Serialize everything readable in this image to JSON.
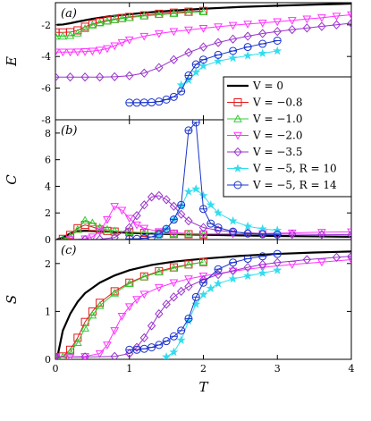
{
  "chart_data": {
    "type": "line",
    "x_axis": {
      "label": "T",
      "lim": [
        0,
        4
      ],
      "ticks": [
        "0",
        "1",
        "2",
        "3",
        "4"
      ]
    },
    "legend": {
      "placement": "right, spanning panels (a) and (b)",
      "entries": [
        {
          "label": "V = 0",
          "color": "#000000",
          "marker": "none"
        },
        {
          "label": "V = −0.8",
          "color": "#e41a1c",
          "marker": "square"
        },
        {
          "label": "V = −1.0",
          "color": "#33cc33",
          "marker": "triangle-up"
        },
        {
          "label": "V = −2.0",
          "color": "#ff33ff",
          "marker": "triangle-down"
        },
        {
          "label": "V = −3.5",
          "color": "#9933cc",
          "marker": "diamond"
        },
        {
          "label": "V = −5, R = 10",
          "color": "#33ddee",
          "marker": "star"
        },
        {
          "label": "V = −5, R = 14",
          "color": "#1a33cc",
          "marker": "circle-plus"
        }
      ]
    },
    "panels": [
      {
        "tag": "(a)",
        "ylabel": "E",
        "ylim": [
          -8,
          -0.6
        ],
        "yticks": [
          -8,
          -6,
          -4,
          -2
        ],
        "ytick_labels": [
          "-8",
          "-6",
          "-4",
          "-2"
        ],
        "series": [
          {
            "name": "V = 0",
            "x": [
              0.02,
              0.1,
              0.2,
              0.3,
              0.5,
              0.7,
              1.0,
              1.3,
              1.6,
              2.0,
              2.5,
              3.0,
              3.5,
              4.0
            ],
            "y": [
              -2.0,
              -1.98,
              -1.9,
              -1.8,
              -1.62,
              -1.48,
              -1.33,
              -1.2,
              -1.1,
              -0.98,
              -0.87,
              -0.79,
              -0.72,
              -0.66
            ]
          },
          {
            "name": "V = −0.8",
            "x": [
              0.0,
              0.1,
              0.2,
              0.3,
              0.4,
              0.5,
              0.6,
              0.7,
              0.8,
              0.9,
              1.0,
              1.2,
              1.4,
              1.6,
              1.8,
              2.0
            ],
            "y": [
              -2.48,
              -2.48,
              -2.46,
              -2.35,
              -2.12,
              -1.95,
              -1.82,
              -1.72,
              -1.64,
              -1.57,
              -1.5,
              -1.4,
              -1.3,
              -1.23,
              -1.17,
              -1.12
            ]
          },
          {
            "name": "V = −1.0",
            "x": [
              0.0,
              0.1,
              0.2,
              0.3,
              0.4,
              0.5,
              0.6,
              0.7,
              0.8,
              0.9,
              1.0,
              1.2,
              1.4,
              1.6,
              1.8,
              2.0
            ],
            "y": [
              -2.72,
              -2.72,
              -2.68,
              -2.52,
              -2.25,
              -2.02,
              -1.88,
              -1.77,
              -1.68,
              -1.6,
              -1.54,
              -1.44,
              -1.36,
              -1.29,
              -1.23,
              -1.18
            ]
          },
          {
            "name": "V = −2.0",
            "x": [
              0.0,
              0.1,
              0.2,
              0.3,
              0.4,
              0.5,
              0.6,
              0.7,
              0.8,
              0.9,
              1.0,
              1.2,
              1.4,
              1.6,
              1.8,
              2.0,
              2.2,
              2.4,
              2.6,
              2.8,
              3.0,
              3.2,
              3.4,
              3.6,
              3.8,
              4.0
            ],
            "y": [
              -3.72,
              -3.72,
              -3.72,
              -3.71,
              -3.69,
              -3.66,
              -3.6,
              -3.5,
              -3.32,
              -3.12,
              -2.95,
              -2.72,
              -2.55,
              -2.42,
              -2.32,
              -2.22,
              -2.12,
              -2.03,
              -1.95,
              -1.88,
              -1.8,
              -1.72,
              -1.63,
              -1.55,
              -1.45,
              -1.36
            ]
          },
          {
            "name": "V = −3.5",
            "x": [
              0.0,
              0.2,
              0.4,
              0.6,
              0.8,
              1.0,
              1.2,
              1.4,
              1.6,
              1.8,
              2.0,
              2.2,
              2.4,
              2.6,
              2.8,
              3.0,
              3.2,
              3.4,
              3.6,
              3.8,
              4.0
            ],
            "y": [
              -5.3,
              -5.3,
              -5.3,
              -5.3,
              -5.28,
              -5.22,
              -5.05,
              -4.7,
              -4.2,
              -3.75,
              -3.4,
              -3.12,
              -2.9,
              -2.72,
              -2.55,
              -2.42,
              -2.3,
              -2.2,
              -2.1,
              -2.0,
              -1.9
            ]
          },
          {
            "name": "V = −5, R = 10",
            "x": [
              1.7,
              1.8,
              1.9,
              2.0,
              2.2,
              2.4,
              2.6,
              2.8,
              3.0
            ],
            "y": [
              -5.8,
              -5.5,
              -5.0,
              -4.6,
              -4.3,
              -4.1,
              -3.95,
              -3.8,
              -3.65
            ]
          },
          {
            "name": "V = −5, R = 14",
            "x": [
              1.0,
              1.1,
              1.2,
              1.3,
              1.4,
              1.5,
              1.6,
              1.7,
              1.8,
              1.9,
              2.0,
              2.2,
              2.4,
              2.6,
              2.8,
              3.0
            ],
            "y": [
              -6.92,
              -6.92,
              -6.91,
              -6.9,
              -6.85,
              -6.72,
              -6.55,
              -6.2,
              -5.2,
              -4.5,
              -4.2,
              -3.9,
              -3.65,
              -3.4,
              -3.2,
              -3.0
            ]
          }
        ]
      },
      {
        "tag": "(b)",
        "ylabel": "C",
        "ylim": [
          0,
          9
        ],
        "yticks": [
          0,
          2,
          4,
          6,
          8
        ],
        "ytick_labels": [
          "0",
          "2",
          "4",
          "6",
          "8"
        ],
        "series": [
          {
            "name": "V = 0",
            "x": [
              0.02,
              0.1,
              0.2,
              0.3,
              0.4,
              0.6,
              0.8,
              1.0,
              1.5,
              2.0,
              2.5,
              3.0,
              3.5,
              4.0
            ],
            "y": [
              0.0,
              0.15,
              0.45,
              0.62,
              0.66,
              0.62,
              0.56,
              0.5,
              0.42,
              0.36,
              0.31,
              0.27,
              0.24,
              0.21
            ]
          },
          {
            "name": "V = −0.8",
            "x": [
              0.1,
              0.2,
              0.3,
              0.4,
              0.5,
              0.6,
              0.7,
              0.8,
              1.0,
              1.2,
              1.4,
              1.6,
              1.8,
              2.0
            ],
            "y": [
              0.05,
              0.35,
              0.85,
              1.1,
              0.95,
              0.75,
              0.65,
              0.6,
              0.55,
              0.5,
              0.45,
              0.42,
              0.4,
              0.38
            ]
          },
          {
            "name": "V = −1.0",
            "x": [
              0.1,
              0.2,
              0.3,
              0.4,
              0.5,
              0.6,
              0.7,
              0.8,
              1.0,
              1.2,
              1.4,
              1.6,
              1.8,
              2.0
            ],
            "y": [
              0.02,
              0.2,
              0.75,
              1.45,
              1.25,
              0.9,
              0.75,
              0.65,
              0.58,
              0.52,
              0.48,
              0.44,
              0.42,
              0.4
            ]
          },
          {
            "name": "V = −2.0",
            "x": [
              0.2,
              0.4,
              0.5,
              0.6,
              0.7,
              0.8,
              0.9,
              1.0,
              1.1,
              1.2,
              1.4,
              1.6,
              2.0,
              2.4,
              2.8,
              3.2,
              3.6,
              4.0
            ],
            "y": [
              0.0,
              0.05,
              0.2,
              0.6,
              1.5,
              2.5,
              2.2,
              1.6,
              1.1,
              0.85,
              0.6,
              0.5,
              0.42,
              0.42,
              0.45,
              0.5,
              0.55,
              0.58
            ]
          },
          {
            "name": "V = −3.5",
            "x": [
              0.4,
              0.6,
              0.8,
              1.0,
              1.1,
              1.2,
              1.3,
              1.4,
              1.5,
              1.6,
              1.7,
              1.8,
              2.0,
              2.2,
              2.4,
              2.6,
              2.8,
              3.0,
              3.2,
              3.6,
              4.0
            ],
            "y": [
              0.0,
              0.02,
              0.15,
              0.9,
              1.8,
              2.6,
              3.2,
              3.3,
              3.0,
              2.5,
              1.9,
              1.4,
              0.9,
              0.7,
              0.55,
              0.5,
              0.45,
              0.42,
              0.4,
              0.38,
              0.36
            ]
          },
          {
            "name": "V = −5, R = 10",
            "x": [
              1.4,
              1.5,
              1.6,
              1.7,
              1.8,
              1.9,
              2.0,
              2.1,
              2.2,
              2.4,
              2.6,
              2.8,
              3.0
            ],
            "y": [
              0.3,
              0.8,
              1.5,
              2.5,
              3.6,
              3.8,
              3.3,
              2.6,
              2.0,
              1.4,
              1.0,
              0.8,
              0.7
            ]
          },
          {
            "name": "V = −5, R = 14",
            "x": [
              1.0,
              1.1,
              1.2,
              1.3,
              1.4,
              1.5,
              1.6,
              1.7,
              1.8,
              1.9,
              2.0,
              2.1,
              2.2,
              2.4,
              2.6,
              2.8,
              3.0
            ],
            "y": [
              0.05,
              0.05,
              0.1,
              0.2,
              0.4,
              0.8,
              1.5,
              2.6,
              8.2,
              8.8,
              2.3,
              1.2,
              0.9,
              0.6,
              0.45,
              0.4,
              0.38
            ]
          }
        ]
      },
      {
        "tag": "(c)",
        "ylabel": "S",
        "ylim": [
          0,
          2.5
        ],
        "yticks": [
          0,
          1,
          2
        ],
        "ytick_labels": [
          "0",
          "1",
          "2"
        ],
        "series": [
          {
            "name": "V = 0",
            "x": [
              0.02,
              0.1,
              0.2,
              0.3,
              0.4,
              0.6,
              0.8,
              1.0,
              1.3,
              1.6,
              2.0,
              2.5,
              3.0,
              3.5,
              4.0
            ],
            "y": [
              0.0,
              0.6,
              0.95,
              1.2,
              1.38,
              1.6,
              1.75,
              1.86,
              1.97,
              2.04,
              2.1,
              2.16,
              2.2,
              2.23,
              2.25
            ]
          },
          {
            "name": "V = −0.8",
            "x": [
              0.0,
              0.1,
              0.2,
              0.3,
              0.4,
              0.5,
              0.6,
              0.8,
              1.0,
              1.2,
              1.4,
              1.6,
              1.8,
              2.0
            ],
            "y": [
              0.05,
              0.06,
              0.2,
              0.45,
              0.78,
              1.0,
              1.18,
              1.42,
              1.6,
              1.73,
              1.84,
              1.92,
              1.98,
              2.03
            ]
          },
          {
            "name": "V = −1.0",
            "x": [
              0.0,
              0.1,
              0.2,
              0.3,
              0.4,
              0.5,
              0.6,
              0.8,
              1.0,
              1.2,
              1.4,
              1.6,
              1.8,
              2.0
            ],
            "y": [
              0.05,
              0.05,
              0.15,
              0.35,
              0.65,
              0.92,
              1.12,
              1.38,
              1.58,
              1.72,
              1.82,
              1.9,
              1.97,
              2.03
            ]
          },
          {
            "name": "V = −2.0",
            "x": [
              0.0,
              0.2,
              0.4,
              0.6,
              0.7,
              0.8,
              0.9,
              1.0,
              1.1,
              1.2,
              1.4,
              1.6,
              1.8,
              2.0,
              2.4,
              2.8,
              3.2,
              3.6,
              4.0
            ],
            "y": [
              0.05,
              0.05,
              0.06,
              0.12,
              0.3,
              0.6,
              0.9,
              1.1,
              1.25,
              1.36,
              1.5,
              1.6,
              1.68,
              1.74,
              1.84,
              1.92,
              1.98,
              2.03,
              2.08
            ]
          },
          {
            "name": "V = −3.5",
            "x": [
              0.0,
              0.4,
              0.8,
              1.0,
              1.1,
              1.2,
              1.3,
              1.4,
              1.5,
              1.6,
              1.7,
              1.8,
              2.0,
              2.2,
              2.4,
              2.6,
              2.8,
              3.0,
              3.4,
              3.8,
              4.0
            ],
            "y": [
              0.05,
              0.05,
              0.06,
              0.12,
              0.25,
              0.45,
              0.7,
              0.95,
              1.15,
              1.3,
              1.42,
              1.52,
              1.66,
              1.77,
              1.85,
              1.92,
              1.98,
              2.02,
              2.08,
              2.13,
              2.15
            ]
          },
          {
            "name": "V = −5, R = 10",
            "x": [
              1.5,
              1.6,
              1.7,
              1.8,
              1.9,
              2.0,
              2.1,
              2.2,
              2.4,
              2.6,
              2.8,
              3.0
            ],
            "y": [
              0.05,
              0.15,
              0.4,
              0.8,
              1.15,
              1.35,
              1.48,
              1.58,
              1.68,
              1.74,
              1.8,
              1.86
            ]
          },
          {
            "name": "V = −5, R = 14",
            "x": [
              1.0,
              1.1,
              1.2,
              1.3,
              1.4,
              1.5,
              1.6,
              1.7,
              1.8,
              1.9,
              2.0,
              2.2,
              2.4,
              2.6,
              2.8,
              3.0
            ],
            "y": [
              0.2,
              0.2,
              0.22,
              0.25,
              0.3,
              0.38,
              0.48,
              0.6,
              0.85,
              1.3,
              1.6,
              1.88,
              2.02,
              2.1,
              2.15,
              2.2
            ]
          }
        ]
      }
    ]
  }
}
